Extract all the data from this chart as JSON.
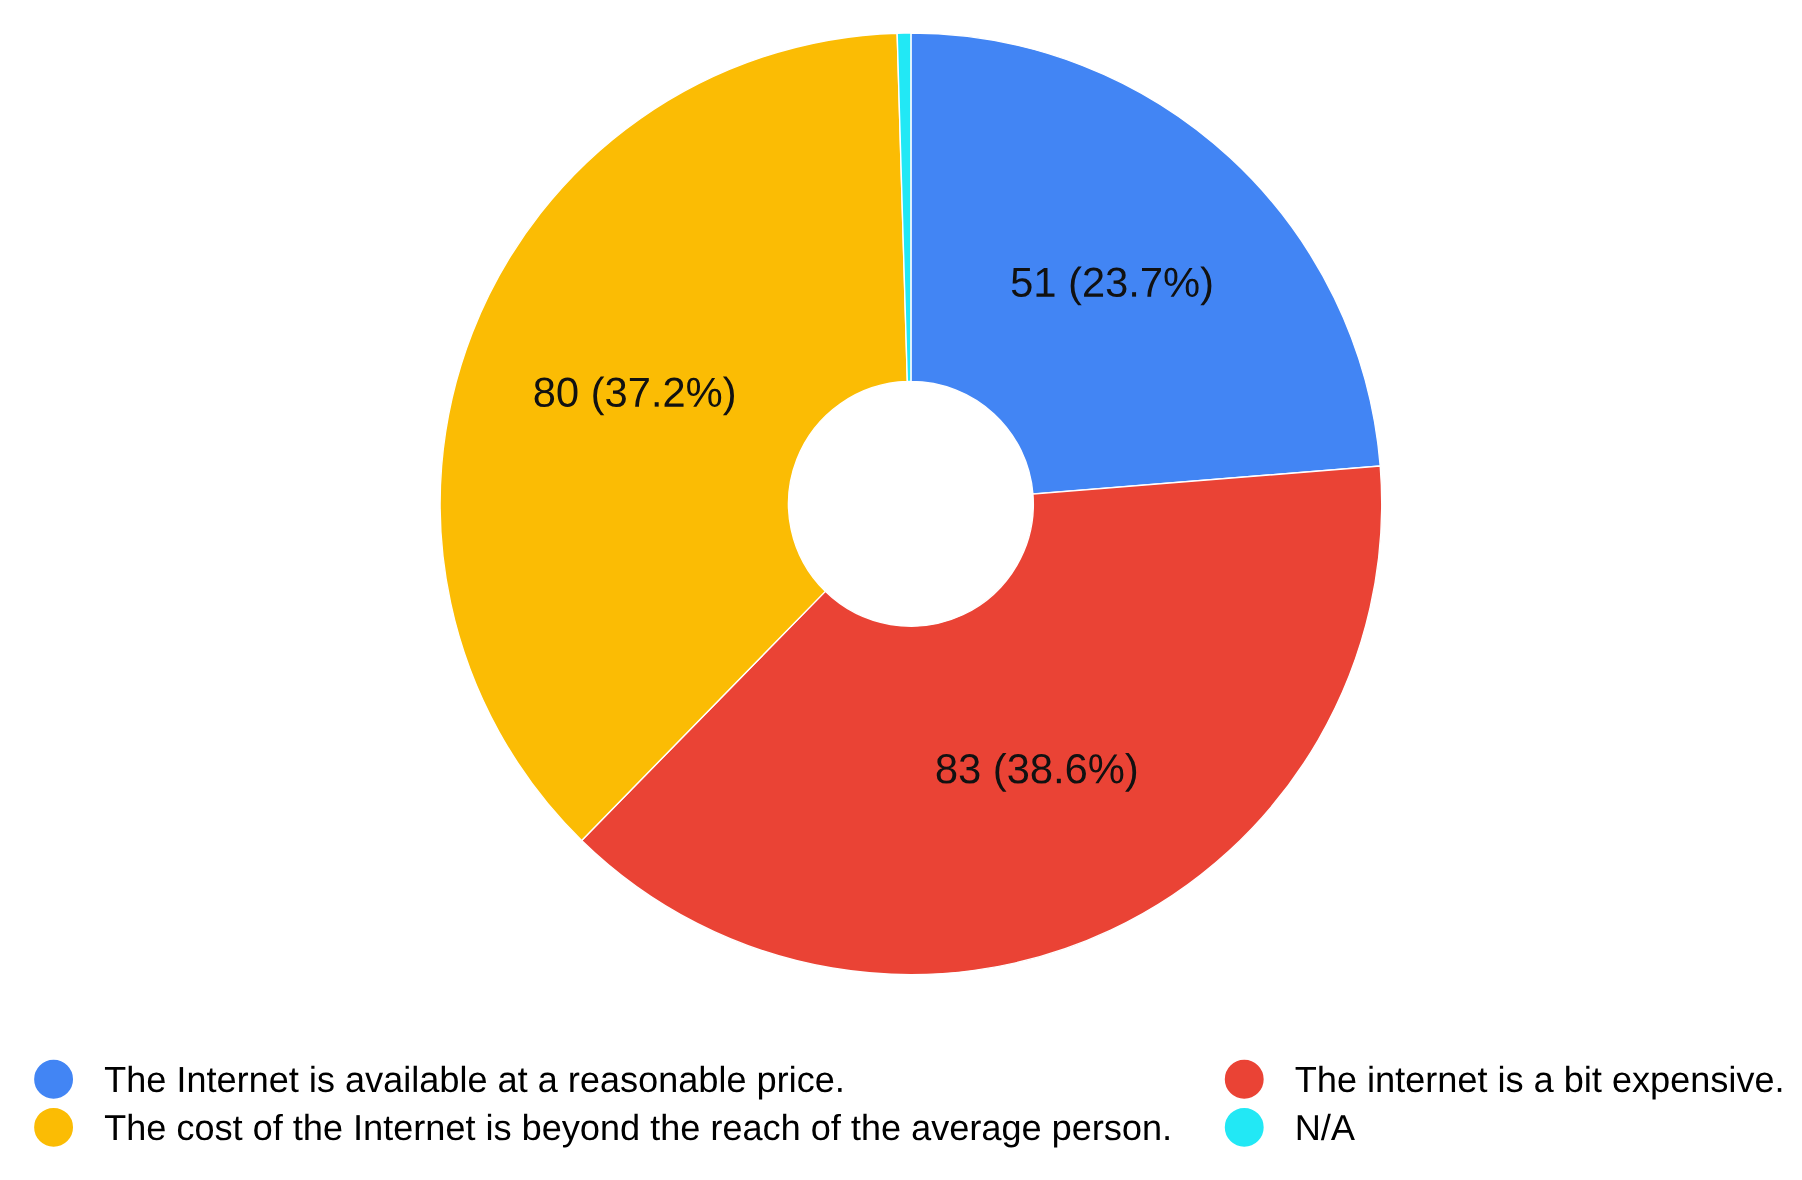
{
  "chart_data": {
    "type": "donut",
    "categories": [
      "The Internet is available at a reasonable price.",
      "The internet is a bit expensive.",
      "The cost of the Internet is beyond the reach of the average person.",
      "N/A"
    ],
    "values": [
      51,
      83,
      80,
      1
    ],
    "colors": [
      "#4285f4",
      "#ea4335",
      "#fbbc04",
      "#22e8f5"
    ],
    "value_labels": [
      "51 (23.7%)",
      "83 (38.6%)",
      "80 (37.2%)",
      null
    ],
    "legend": "bottom"
  }
}
